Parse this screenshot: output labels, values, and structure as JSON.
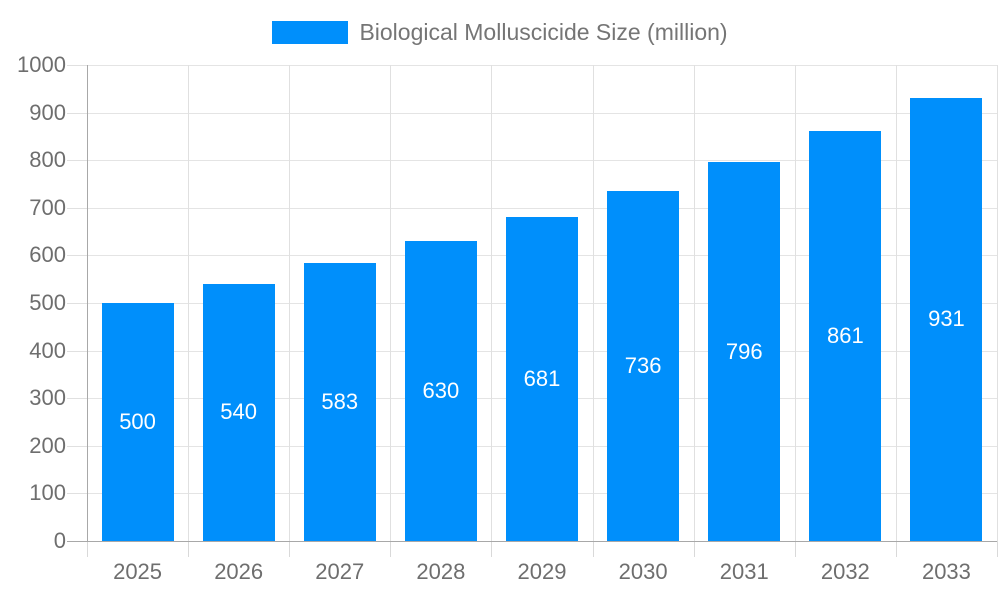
{
  "legend": {
    "label": "Biological Molluscicide Size (million)"
  },
  "colors": {
    "bar": "#008FFB",
    "bar_label": "#ffffff",
    "axis_line": "#a8a8a8",
    "gridline": "#e0e0e0",
    "axis_text": "#6e6e6e",
    "legend_text": "#757575"
  },
  "chart_data": {
    "type": "bar",
    "title": "Biological Molluscicide Size (million)",
    "categories": [
      "2025",
      "2026",
      "2027",
      "2028",
      "2029",
      "2030",
      "2031",
      "2032",
      "2033"
    ],
    "series": [
      {
        "name": "Biological Molluscicide Size (million)",
        "values": [
          500,
          540,
          583,
          630,
          681,
          736,
          796,
          861,
          931
        ]
      }
    ],
    "bar_labels": [
      "500",
      "540",
      "583",
      "630",
      "681",
      "736",
      "796",
      "861",
      "931"
    ],
    "xlabel": "",
    "ylabel": "",
    "ylim": [
      0,
      1000
    ],
    "ytick_step": 100,
    "ytick_labels": [
      "0",
      "100",
      "200",
      "300",
      "400",
      "500",
      "600",
      "700",
      "800",
      "900",
      "1000"
    ],
    "grid": true,
    "legend_position": "top"
  }
}
